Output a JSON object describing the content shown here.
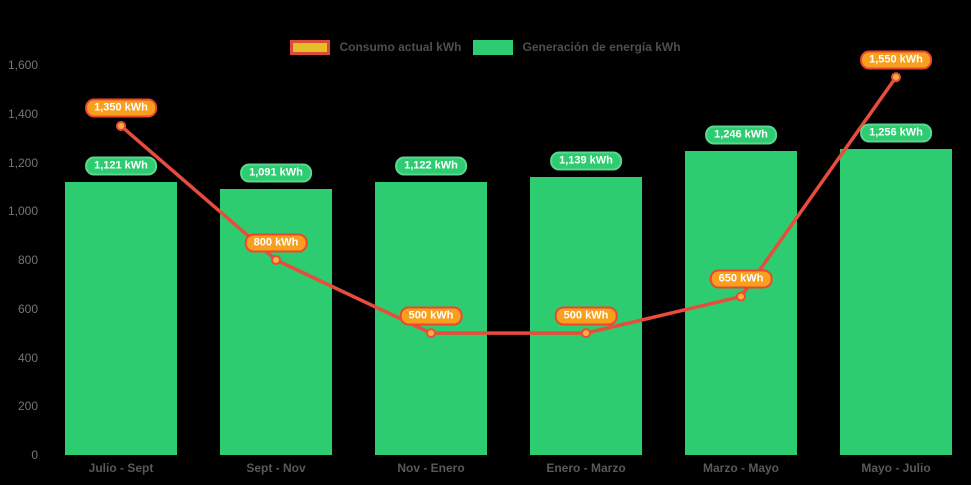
{
  "chart_data": {
    "type": "bar",
    "subtype": "combo-bar-line",
    "title": "",
    "categories": [
      "Julio - Sept",
      "Sept - Nov",
      "Nov - Enero",
      "Enero - Marzo",
      "Marzo - Mayo",
      "Mayo - Julio"
    ],
    "series": [
      {
        "name": "Consumo actual kWh",
        "type": "line",
        "values": [
          1350,
          800,
          500,
          500,
          650,
          1550
        ],
        "labels": [
          "1,350 kWh",
          "800 kWh",
          "500 kWh",
          "500 kWh",
          "650 kWh",
          "1,550 kWh"
        ],
        "line_color": "#e74c3c",
        "marker_fill": "#fbb03b",
        "badge_fill": "#f8a01e",
        "badge_border": "#ed4630",
        "legend_swatch_fill": "#e6be28",
        "legend_swatch_border": "#dc4b3c"
      },
      {
        "name": "Generación de energía kWh",
        "type": "bar",
        "values": [
          1121,
          1091,
          1122,
          1139,
          1246,
          1256
        ],
        "labels": [
          "1,121 kWh",
          "1,091 kWh",
          "1,122 kWh",
          "1,139 kWh",
          "1,246 kWh",
          "1,256 kWh"
        ],
        "color": "#2ecc71",
        "badge_fill": "#2ecc71",
        "badge_border": "#5bd791"
      }
    ],
    "y_ticks": [
      0,
      200,
      400,
      600,
      800,
      1000,
      1200,
      1400,
      1600
    ],
    "y_tick_labels": [
      "0",
      "200",
      "400",
      "600",
      "800",
      "1,000",
      "1,200",
      "1,400",
      "1,600"
    ],
    "ylim": [
      0,
      1600
    ],
    "grid": false,
    "legend_position": "top-center",
    "background": "#000000",
    "text_colors": {
      "legend": "#4e4e4e",
      "y_axis": "#757575",
      "x_axis": "#595959",
      "badge_text": "#ffffff"
    }
  }
}
